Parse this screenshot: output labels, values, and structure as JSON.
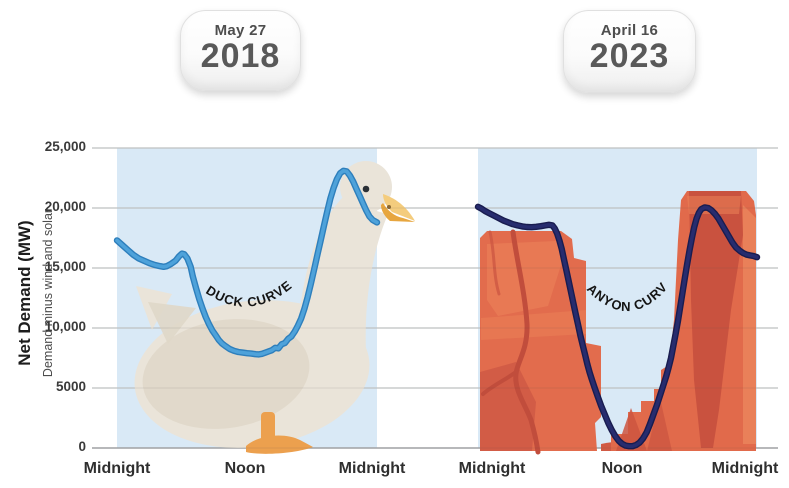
{
  "badges": [
    {
      "date": "May 27",
      "year": "2018"
    },
    {
      "date": "April 16",
      "year": "2023"
    }
  ],
  "y_axis": {
    "title": "Net Demand (MW)",
    "subtitle": "Demand minus wind and solar",
    "tick_labels": [
      "25,000",
      "20,000",
      "15,000",
      "10,000",
      "5000",
      "0"
    ],
    "tick_values": [
      25000,
      20000,
      15000,
      10000,
      5000,
      0
    ]
  },
  "x_axis": {
    "left_labels": [
      "Midnight",
      "Noon",
      "Midnight"
    ],
    "right_labels": [
      "Midnight",
      "Noon",
      "Midnight"
    ]
  },
  "colors": {
    "panel_blue": "#D9E9F6",
    "duck_line": "#4EA2DA",
    "duck_line_edge": "#2E7FBC",
    "canyon_line": "#272C6E",
    "canyon_line_edge": "#191C4F",
    "gridline": "#CBCDCF",
    "zero_line": "#A7A9AB",
    "duck_body": "#EAE4D9",
    "canyon_orange": "#E26C4D"
  },
  "chart_data": [
    {
      "id": "duck-curve",
      "type": "line",
      "panel": "left",
      "name": "Net demand, May 27 2018 (Duck Curve)",
      "annotation": "DUCK CURVE",
      "line_color": "#4EA2DA",
      "line_edge_color": "#2E7FBC",
      "x_ticks": [
        "Midnight",
        "Noon",
        "Midnight"
      ],
      "ylim": [
        0,
        25000
      ],
      "x_hours": [
        0,
        0.5,
        1,
        1.5,
        2,
        2.5,
        3,
        3.5,
        4,
        4.3,
        4.6,
        5,
        5.4,
        5.7,
        6,
        6.2,
        6.5,
        6.8,
        7,
        7.3,
        7.6,
        7.9,
        8.2,
        8.5,
        8.8,
        9.1,
        9.4,
        9.7,
        10,
        10.4,
        10.8,
        11.2,
        11.6,
        12,
        12.4,
        12.8,
        13.1,
        13.4,
        13.7,
        14,
        14.3,
        14.6,
        14.9,
        15.2,
        15.5,
        15.8,
        16.1,
        16.4,
        16.7,
        17,
        17.3,
        17.6,
        17.9,
        18.2,
        18.5,
        18.8,
        19.1,
        19.4,
        19.7,
        20,
        20.3,
        20.6,
        20.9,
        21.2,
        21.5,
        21.8,
        22.1,
        22.4,
        22.7,
        23,
        23.3,
        23.6,
        24
      ],
      "values_mw": [
        17300,
        16900,
        16500,
        16100,
        15800,
        15600,
        15400,
        15250,
        15150,
        15100,
        15150,
        15350,
        15600,
        15950,
        16200,
        16150,
        15800,
        15100,
        14300,
        13300,
        12400,
        11600,
        10900,
        10300,
        9800,
        9400,
        9000,
        8700,
        8500,
        8250,
        8100,
        8000,
        7950,
        7900,
        7870,
        7820,
        7800,
        7850,
        7950,
        8050,
        8150,
        8350,
        8300,
        8650,
        8750,
        9100,
        9300,
        9700,
        10200,
        10800,
        11600,
        12600,
        13700,
        14900,
        16100,
        17300,
        18500,
        19700,
        20800,
        21700,
        22400,
        22900,
        23100,
        23050,
        22700,
        22200,
        21600,
        21000,
        20400,
        19800,
        19300,
        19000,
        18800
      ]
    },
    {
      "id": "canyon-curve",
      "type": "line",
      "panel": "right",
      "name": "Net demand, April 16 2023 (Canyon Curve)",
      "annotation": "CANYON CURVE",
      "line_color": "#272C6E",
      "line_edge_color": "#191C4F",
      "x_ticks": [
        "Midnight",
        "Noon",
        "Midnight"
      ],
      "ylim": [
        0,
        25000
      ],
      "x_hours": [
        0,
        0.3,
        0.6,
        1,
        1.4,
        1.8,
        2.2,
        2.6,
        3,
        3.4,
        3.8,
        4.2,
        4.6,
        5,
        5.4,
        5.8,
        6.1,
        6.4,
        6.6,
        6.8,
        7,
        7.2,
        7.4,
        7.6,
        7.8,
        8,
        8.2,
        8.4,
        8.6,
        8.8,
        9,
        9.2,
        9.4,
        9.6,
        9.8,
        10,
        10.3,
        10.6,
        10.9,
        11.2,
        11.5,
        11.8,
        12.1,
        12.4,
        12.7,
        13,
        13.3,
        13.6,
        13.9,
        14.2,
        14.5,
        14.8,
        15.1,
        15.4,
        15.7,
        16,
        16.2,
        16.4,
        16.6,
        16.8,
        17,
        17.2,
        17.4,
        17.6,
        17.8,
        18,
        18.2,
        18.4,
        18.6,
        18.8,
        19,
        19.2,
        19.5,
        19.8,
        20.1,
        20.4,
        20.7,
        21,
        21.3,
        21.6,
        21.9,
        22.2,
        22.5,
        22.8,
        23.1,
        23.4,
        23.7,
        24
      ],
      "values_mw": [
        20100,
        19950,
        19750,
        19550,
        19350,
        19150,
        18950,
        18800,
        18650,
        18550,
        18470,
        18420,
        18400,
        18430,
        18480,
        18550,
        18600,
        18550,
        18300,
        17900,
        17300,
        16600,
        15700,
        14800,
        13900,
        13000,
        12100,
        11200,
        10300,
        9400,
        8600,
        7800,
        7000,
        6300,
        5700,
        5100,
        4300,
        3500,
        2800,
        2100,
        1500,
        1000,
        600,
        350,
        200,
        150,
        150,
        250,
        450,
        800,
        1300,
        2000,
        2800,
        3600,
        4500,
        5400,
        6000,
        6700,
        7500,
        8500,
        9500,
        10600,
        11800,
        13000,
        14200,
        15400,
        16500,
        17500,
        18400,
        19100,
        19600,
        19900,
        20050,
        20000,
        19800,
        19500,
        19100,
        18600,
        18100,
        17600,
        17100,
        16700,
        16450,
        16250,
        16120,
        16050,
        16000,
        15900
      ]
    }
  ]
}
